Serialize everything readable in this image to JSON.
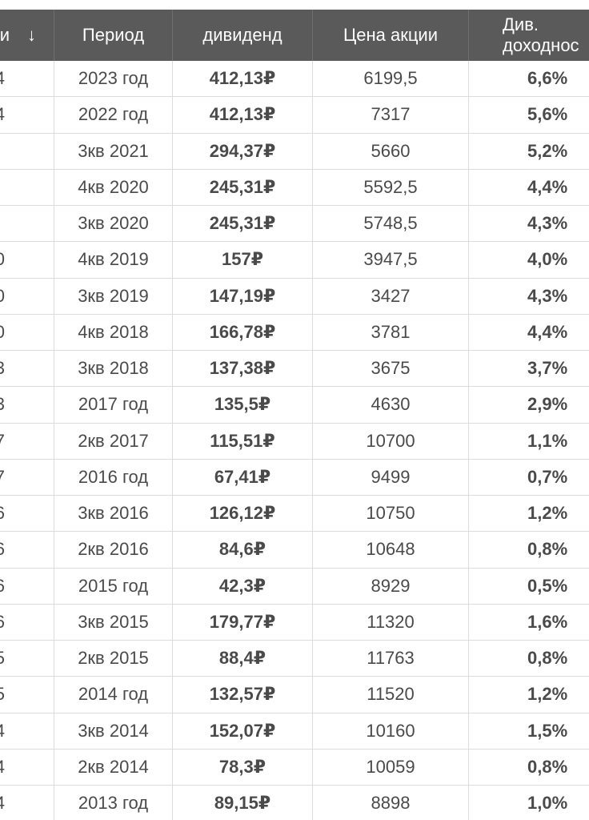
{
  "table": {
    "header": {
      "clipped": [
        "и",
        "↓"
      ],
      "columns": [
        "Период",
        "дивиденд",
        "Цена акции",
        [
          "Див.",
          "доходнос"
        ]
      ]
    },
    "clipped_column": [
      "4",
      "4",
      null,
      null,
      null,
      "0",
      "0",
      "0",
      "3",
      "3",
      "7",
      "7",
      "6",
      "6",
      "6",
      "6",
      "5",
      "5",
      "4",
      "4",
      "4"
    ],
    "rows": [
      [
        "2023 год",
        "412,13₽",
        "6199,5",
        "6,6%"
      ],
      [
        "2022 год",
        "412,13₽",
        "7317",
        "5,6%"
      ],
      [
        "3кв 2021",
        "294,37₽",
        "5660",
        "5,2%"
      ],
      [
        "4кв 2020",
        "245,31₽",
        "5592,5",
        "4,4%"
      ],
      [
        "3кв 2020",
        "245,31₽",
        "5748,5",
        "4,3%"
      ],
      [
        "4кв 2019",
        "157₽",
        "3947,5",
        "4,0%"
      ],
      [
        "3кв 2019",
        "147,19₽",
        "3427",
        "4,3%"
      ],
      [
        "4кв 2018",
        "166,78₽",
        "3781",
        "4,4%"
      ],
      [
        "3кв 2018",
        "137,38₽",
        "3675",
        "3,7%"
      ],
      [
        "2017 год",
        "135,5₽",
        "4630",
        "2,9%"
      ],
      [
        "2кв 2017",
        "115,51₽",
        "10700",
        "1,1%"
      ],
      [
        "2016 год",
        "67,41₽",
        "9499",
        "0,7%"
      ],
      [
        "3кв 2016",
        "126,12₽",
        "10750",
        "1,2%"
      ],
      [
        "2кв 2016",
        "84,6₽",
        "10648",
        "0,8%"
      ],
      [
        "2015 год",
        "42,3₽",
        "8929",
        "0,5%"
      ],
      [
        "3кв 2015",
        "179,77₽",
        "11320",
        "1,6%"
      ],
      [
        "2кв 2015",
        "88,4₽",
        "11763",
        "0,8%"
      ],
      [
        "2014 год",
        "132,57₽",
        "11520",
        "1,2%"
      ],
      [
        "3кв 2014",
        "152,07₽",
        "10160",
        "1,5%"
      ],
      [
        "2кв 2014",
        "78,3₽",
        "10059",
        "0,8%"
      ],
      [
        "2013 год",
        "89,15₽",
        "8898",
        "1,0%"
      ]
    ]
  }
}
